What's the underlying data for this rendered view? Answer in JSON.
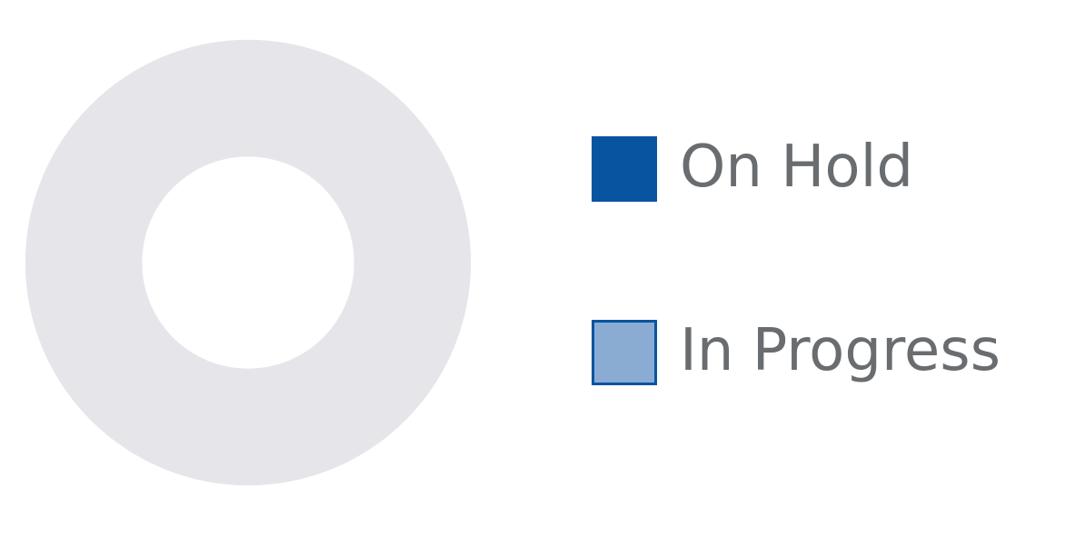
{
  "chart_data": {
    "type": "pie",
    "variant": "donut",
    "title": "",
    "series": [
      {
        "name": "On Hold",
        "value": 0,
        "color": "#0854a0",
        "border": "#0854a0"
      },
      {
        "name": "In Progress",
        "value": 0,
        "color": "#8aabd2",
        "border": "#0854a0"
      }
    ],
    "empty_ring_color": "#e5e5ea",
    "legend_position": "right"
  }
}
